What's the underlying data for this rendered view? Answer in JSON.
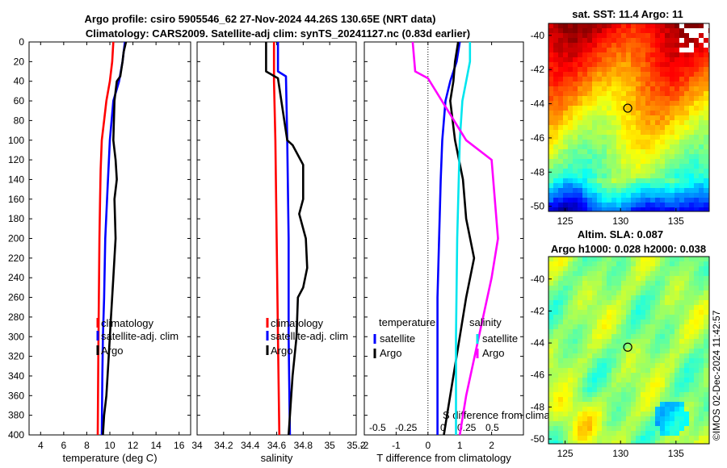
{
  "title": {
    "line1": "Argo profile: csiro 5905546_62 27-Nov-2024 44.26S 130.65E (NRT data)",
    "line2": "Climatology: CARS2009. Satellite-adj clim: synTS_20241127.nc (0.83d earlier)"
  },
  "colors": {
    "climatology": "#ff0000",
    "satellite": "#0000ff",
    "argo": "#000000",
    "sat_salinity": "#00e5ee",
    "argo_salinity": "#ff00ff"
  },
  "chart_data": [
    {
      "type": "line",
      "name": "temperature",
      "xlabel": "temperature (deg C)",
      "xlim": [
        3,
        17
      ],
      "xticks": [
        "4",
        "6",
        "8",
        "10",
        "12",
        "14",
        "16"
      ],
      "xtick_values": [
        4,
        6,
        8,
        10,
        12,
        14,
        16
      ],
      "ylim": [
        0,
        400
      ],
      "yticks": [
        "0",
        "20",
        "40",
        "60",
        "80",
        "100",
        "120",
        "140",
        "160",
        "180",
        "200",
        "220",
        "240",
        "260",
        "280",
        "300",
        "320",
        "340",
        "360",
        "380",
        "400"
      ],
      "legend": [
        "climatology",
        "satellite-adj. clim",
        "Argo"
      ],
      "series": [
        {
          "name": "climatology",
          "color": "#ff0000",
          "depth": [
            0,
            20,
            40,
            60,
            80,
            100,
            130,
            160,
            200,
            260,
            320,
            400
          ],
          "values": [
            10.3,
            10.2,
            10.0,
            9.7,
            9.5,
            9.3,
            9.2,
            9.15,
            9.1,
            9.05,
            9.0,
            8.95
          ]
        },
        {
          "name": "satellite-adj. clim",
          "color": "#0000ff",
          "depth": [
            0,
            20,
            40,
            60,
            100,
            150,
            200,
            260,
            300,
            340,
            400
          ],
          "values": [
            11.3,
            11.1,
            10.8,
            10.3,
            10.0,
            9.8,
            9.6,
            9.5,
            9.4,
            9.35,
            9.3
          ]
        },
        {
          "name": "Argo",
          "color": "#000000",
          "depth": [
            0,
            10,
            20,
            35,
            40,
            60,
            100,
            120,
            140,
            160,
            200,
            240,
            280,
            320,
            360,
            380,
            400
          ],
          "values": [
            11.4,
            11.2,
            11.1,
            10.9,
            10.6,
            10.4,
            10.3,
            10.5,
            10.6,
            10.4,
            10.5,
            10.3,
            10.1,
            9.9,
            9.7,
            9.5,
            9.4
          ]
        }
      ]
    },
    {
      "type": "line",
      "name": "salinity",
      "xlabel": "salinity",
      "xlim": [
        34.0,
        35.2
      ],
      "xticks": [
        "34",
        "34.2",
        "34.4",
        "34.6",
        "34.8",
        "35",
        "35.2"
      ],
      "xtick_values": [
        34.0,
        34.2,
        34.4,
        34.6,
        34.8,
        35.0,
        35.2
      ],
      "ylim": [
        0,
        400
      ],
      "legend": [
        "climatology",
        "satellite-adj. clim",
        "Argo"
      ],
      "series": [
        {
          "name": "climatology",
          "color": "#ff0000",
          "depth": [
            0,
            40,
            100,
            200,
            300,
            400
          ],
          "values": [
            34.58,
            34.58,
            34.59,
            34.6,
            34.61,
            34.62
          ]
        },
        {
          "name": "satellite-adj. clim",
          "color": "#0000ff",
          "depth": [
            0,
            30,
            35,
            100,
            200,
            300,
            400
          ],
          "values": [
            34.61,
            34.61,
            34.67,
            34.68,
            34.69,
            34.69,
            34.7
          ]
        },
        {
          "name": "Argo",
          "color": "#000000",
          "depth": [
            0,
            30,
            37,
            100,
            105,
            125,
            160,
            175,
            200,
            230,
            250,
            260,
            300,
            340,
            400
          ],
          "values": [
            34.52,
            34.52,
            34.61,
            34.68,
            34.72,
            34.8,
            34.8,
            34.77,
            34.82,
            34.83,
            34.8,
            34.76,
            34.75,
            34.72,
            34.69
          ]
        }
      ]
    },
    {
      "type": "line",
      "name": "difference from climatology",
      "xlabel": "T difference from climatology",
      "xlim": [
        -2,
        3
      ],
      "xticks": [
        "-2",
        "-1",
        "0",
        "1",
        "2"
      ],
      "xtick_values": [
        -2,
        -1,
        0,
        1,
        2
      ],
      "s_xlabel": "S difference from climatology",
      "s_xticks": [
        "-0.5",
        "-0.25",
        "0",
        "0.25",
        "0.5"
      ],
      "ylim": [
        0,
        400
      ],
      "legend_temperature": {
        "title": "temperature",
        "items": [
          "satellite",
          "Argo"
        ]
      },
      "legend_salinity": {
        "title": "salinity",
        "items": [
          "satellite",
          "Argo"
        ]
      },
      "series": [
        {
          "name": "T satellite",
          "color": "#0000ff",
          "depth": [
            0,
            20,
            40,
            60,
            100,
            140,
            200,
            260,
            320,
            400
          ],
          "values": [
            1.0,
            0.9,
            0.7,
            0.55,
            0.45,
            0.4,
            0.35,
            0.3,
            0.3,
            0.3
          ]
        },
        {
          "name": "T Argo",
          "color": "#000000",
          "depth": [
            0,
            20,
            40,
            60,
            100,
            140,
            180,
            220,
            260,
            300,
            340,
            380,
            400
          ],
          "values": [
            0.95,
            0.85,
            0.8,
            0.7,
            0.85,
            1.1,
            1.2,
            1.45,
            1.2,
            1.0,
            0.8,
            0.6,
            0.5
          ]
        },
        {
          "name": "S satellite",
          "color": "#00e5ee",
          "depth": [
            0,
            20,
            40,
            60,
            100,
            200,
            300,
            400
          ],
          "values": [
            0.33,
            0.33,
            0.3,
            0.27,
            0.25,
            0.23,
            0.22,
            0.22
          ]
        },
        {
          "name": "S Argo",
          "color": "#ff00ff",
          "depth": [
            0,
            30,
            37,
            100,
            120,
            200,
            240,
            300,
            360,
            400
          ],
          "values": [
            -0.12,
            -0.1,
            0.0,
            0.3,
            0.5,
            0.55,
            0.5,
            0.4,
            0.3,
            0.25
          ]
        }
      ]
    }
  ],
  "maps": {
    "sst": {
      "title": "sat. SST: 11.4 Argo: 11",
      "xticks": [
        "125",
        "130",
        "135"
      ],
      "xtick_values": [
        125,
        130,
        135
      ],
      "yticks": [
        "-40",
        "-42",
        "-44",
        "-46",
        "-48",
        "-50"
      ],
      "ytick_values": [
        -40,
        -42,
        -44,
        -46,
        -48,
        -50
      ],
      "lon_range": [
        123.5,
        138
      ],
      "lat_range": [
        -50.3,
        -39.3
      ],
      "marker": {
        "lon": 130.65,
        "lat": -44.26
      }
    },
    "sla": {
      "title1": "Altim. SLA: 0.087",
      "title2": "Argo h1000: 0.028 h2000: 0.038",
      "xticks": [
        "125",
        "130",
        "135"
      ],
      "xtick_values": [
        125,
        130,
        135
      ],
      "yticks": [
        "-40",
        "-42",
        "-44",
        "-46",
        "-48",
        "-50"
      ],
      "ytick_values": [
        -40,
        -42,
        -44,
        -46,
        -48,
        -50
      ],
      "lon_range": [
        123.5,
        138
      ],
      "lat_range": [
        -50.3,
        -38.6
      ],
      "marker": {
        "lon": 130.65,
        "lat": -44.26
      }
    }
  },
  "watermark": "©IMOS 02-Dec-2024 11:42:57"
}
